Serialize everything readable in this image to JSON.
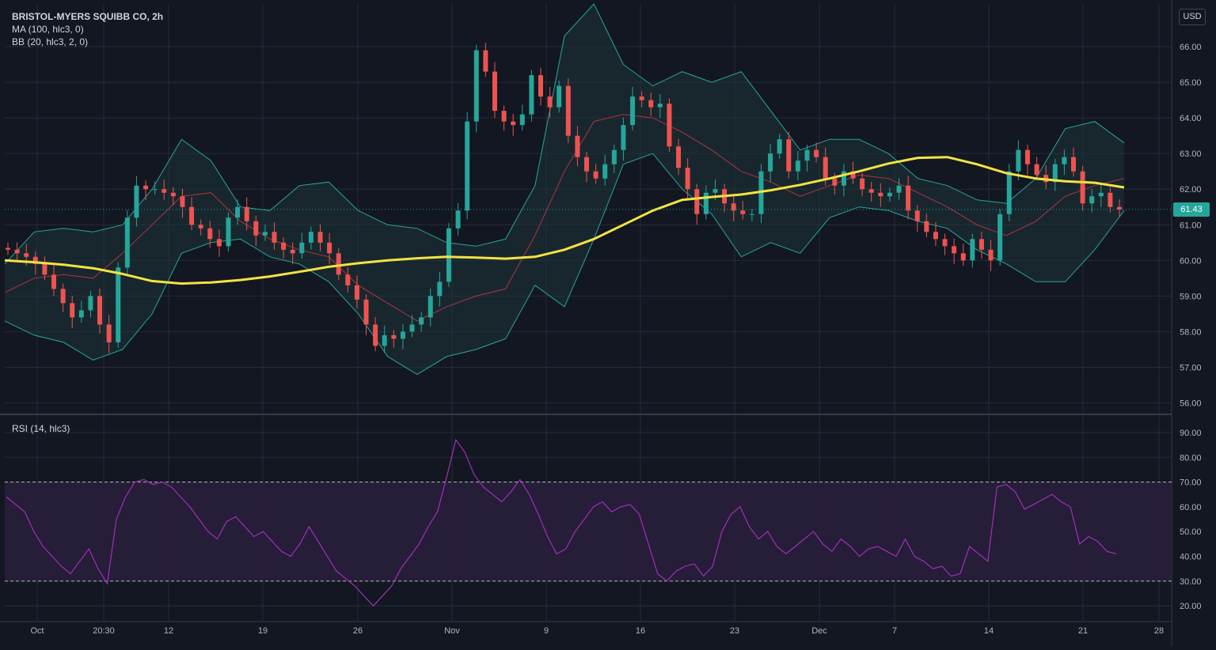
{
  "legend": {
    "title": "BRISTOL-MYERS SQUIBB CO, 2h",
    "ma": "MA (100, hlc3, 0)",
    "bb": "BB (20, hlc3, 2, 0)",
    "rsi": "RSI (14, hlc3)"
  },
  "currency": "USD",
  "last_price": "61.43",
  "colors": {
    "background": "#131722",
    "grid": "#262b38",
    "up": "#26a69a",
    "down": "#ef5350",
    "ma": "#f5e342",
    "bb_band": "#26a69a",
    "bb_basis": "#b2333f",
    "rsi_line": "#a12fb8",
    "rsi_band": "#2a1e3d"
  },
  "chart_data": [
    {
      "type": "candlestick",
      "title": "BRISTOL-MYERS SQUIBB CO, 2h",
      "ylim": [
        55.7,
        67.2
      ],
      "y_ticks": [
        "56.00",
        "57.00",
        "58.00",
        "59.00",
        "60.00",
        "61.00",
        "62.00",
        "63.00",
        "64.00",
        "65.00",
        "66.00"
      ],
      "x_ticks": [
        "Oct",
        "20:30",
        "12",
        "19",
        "26",
        "Nov",
        "9",
        "16",
        "23",
        "Dec",
        "7",
        "14",
        "21",
        "28"
      ],
      "last_value": 61.43,
      "close": [
        60.3,
        60.2,
        60.1,
        59.9,
        59.6,
        59.2,
        58.8,
        58.4,
        58.6,
        59.0,
        58.2,
        57.7,
        59.8,
        61.2,
        62.1,
        62.0,
        62.0,
        61.9,
        61.8,
        61.5,
        61.0,
        60.9,
        60.6,
        60.4,
        61.2,
        61.5,
        61.1,
        60.7,
        60.8,
        60.5,
        60.3,
        60.2,
        60.5,
        60.8,
        60.5,
        60.2,
        59.6,
        59.3,
        58.9,
        58.2,
        57.6,
        57.9,
        57.8,
        58.0,
        58.2,
        58.4,
        59.0,
        59.4,
        60.9,
        61.4,
        63.9,
        65.9,
        65.3,
        64.2,
        63.9,
        63.8,
        64.1,
        65.2,
        64.6,
        64.3,
        64.9,
        63.5,
        62.9,
        62.5,
        62.3,
        62.7,
        63.1,
        63.8,
        64.6,
        64.5,
        64.3,
        64.4,
        63.2,
        62.6,
        62.0,
        61.3,
        61.9,
        62.0,
        61.6,
        61.4,
        61.3,
        61.3,
        62.5,
        63.0,
        63.4,
        62.5,
        62.8,
        63.1,
        62.9,
        62.3,
        62.1,
        62.5,
        62.3,
        62.0,
        61.9,
        61.8,
        61.9,
        62.1,
        61.4,
        61.1,
        60.8,
        60.6,
        60.4,
        60.2,
        60.0,
        60.6,
        60.3,
        60.0,
        61.3,
        62.5,
        63.1,
        62.7,
        62.4,
        62.2,
        62.7,
        62.9,
        62.5,
        61.6,
        61.8,
        61.9,
        61.5,
        61.43
      ],
      "ma": [
        60.0,
        59.95,
        59.88,
        59.78,
        59.62,
        59.42,
        59.35,
        59.38,
        59.45,
        59.55,
        59.68,
        59.82,
        59.92,
        60.0,
        60.06,
        60.1,
        60.08,
        60.05,
        60.1,
        60.3,
        60.6,
        61.0,
        61.4,
        61.7,
        61.78,
        61.85,
        61.97,
        62.12,
        62.3,
        62.5,
        62.72,
        62.88,
        62.9,
        62.7,
        62.45,
        62.3,
        62.22,
        62.18,
        62.05
      ],
      "bb_upper": [
        59.9,
        60.8,
        60.9,
        60.8,
        61.0,
        62.0,
        63.4,
        62.8,
        61.5,
        61.4,
        62.1,
        62.2,
        61.4,
        61.0,
        60.9,
        60.5,
        60.4,
        60.6,
        62.1,
        66.3,
        67.2,
        65.5,
        64.9,
        65.3,
        65.0,
        65.3,
        64.2,
        63.1,
        63.4,
        63.4,
        63.0,
        62.3,
        62.1,
        61.7,
        61.6,
        62.3,
        63.7,
        63.9,
        63.3
      ],
      "bb_basis": [
        59.1,
        59.5,
        59.6,
        59.5,
        60.2,
        61.0,
        61.8,
        61.9,
        61.1,
        60.6,
        60.3,
        60.1,
        59.3,
        58.8,
        58.3,
        58.7,
        59.0,
        59.2,
        60.7,
        62.5,
        63.9,
        64.1,
        64.0,
        63.6,
        63.1,
        62.5,
        62.2,
        61.8,
        62.1,
        62.4,
        62.3,
        61.9,
        61.5,
        61.0,
        60.7,
        61.1,
        61.8,
        62.1,
        62.3
      ],
      "bb_lower": [
        58.3,
        57.9,
        57.7,
        57.2,
        57.5,
        58.5,
        60.2,
        60.5,
        60.6,
        60.1,
        59.9,
        59.4,
        58.5,
        57.3,
        56.8,
        57.3,
        57.5,
        57.8,
        59.3,
        58.7,
        60.6,
        62.7,
        63.0,
        62.0,
        61.3,
        60.1,
        60.5,
        60.2,
        61.2,
        61.5,
        61.4,
        61.1,
        60.9,
        60.3,
        59.9,
        59.4,
        59.4,
        60.3,
        61.4
      ]
    },
    {
      "type": "line",
      "title": "RSI (14, hlc3)",
      "ylim": [
        14,
        97
      ],
      "y_ticks": [
        "20.00",
        "30.00",
        "40.00",
        "50.00",
        "60.00",
        "70.00",
        "80.00",
        "90.00"
      ],
      "bands": [
        30,
        70
      ],
      "values": [
        64,
        61,
        58,
        50,
        44,
        40,
        36,
        33,
        38,
        43,
        35,
        29,
        55,
        64,
        70,
        71,
        69,
        70,
        68,
        64,
        60,
        55,
        50,
        47,
        54,
        56,
        52,
        48,
        50,
        46,
        42,
        40,
        45,
        52,
        46,
        40,
        34,
        31,
        28,
        24,
        20,
        24,
        28,
        35,
        40,
        45,
        52,
        58,
        72,
        87,
        82,
        73,
        68,
        65,
        62,
        66,
        71,
        65,
        57,
        48,
        41,
        43,
        50,
        55,
        60,
        62,
        58,
        60,
        61,
        57,
        45,
        33,
        30,
        34,
        36,
        37,
        32,
        36,
        50,
        57,
        60,
        52,
        47,
        50,
        44,
        41,
        44,
        47,
        50,
        45,
        42,
        47,
        44,
        40,
        43,
        44,
        42,
        40,
        47,
        40,
        38,
        35,
        36,
        32,
        33,
        44,
        41,
        38,
        68,
        69,
        66,
        59,
        61,
        63,
        65,
        62,
        60,
        45,
        48,
        46,
        42,
        41
      ]
    }
  ]
}
